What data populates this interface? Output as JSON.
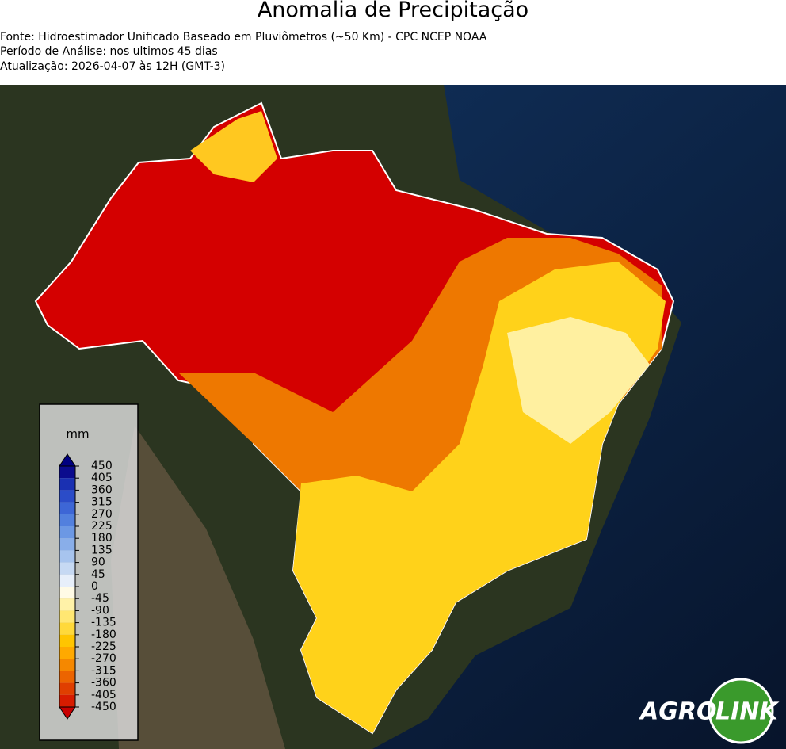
{
  "header": {
    "title": "Anomalia de Precipitação",
    "lines": [
      "Fonte: Hidroestimador Unificado Baseado em Pluviômetros (~50 Km) - CPC NCEP NOAA",
      "Período de Análise: nos ultimos 45 dias",
      "Atualização: 2026-04-07 às 12H (GMT-3)"
    ]
  },
  "legend": {
    "unit": "mm",
    "ticks": [
      450,
      405,
      360,
      315,
      270,
      225,
      180,
      135,
      90,
      45,
      0,
      -45,
      -90,
      -135,
      -180,
      -225,
      -270,
      -315,
      -360,
      -405,
      -450
    ],
    "colors": [
      "#0b0b8e",
      "#1a30b2",
      "#2b4cc8",
      "#3d66d6",
      "#5280de",
      "#6c98e4",
      "#89aee9",
      "#a7c4ee",
      "#c6d9f3",
      "#e7effa",
      "#fffbe6",
      "#fff2a8",
      "#ffe772",
      "#ffd93a",
      "#ffc500",
      "#ffa900",
      "#f58800",
      "#ec6400",
      "#e03f00",
      "#d81c00"
    ],
    "over_color": "#000080",
    "under_color": "#c80000"
  },
  "logo": {
    "word1": "AGRO",
    "word2": "LINK"
  }
}
